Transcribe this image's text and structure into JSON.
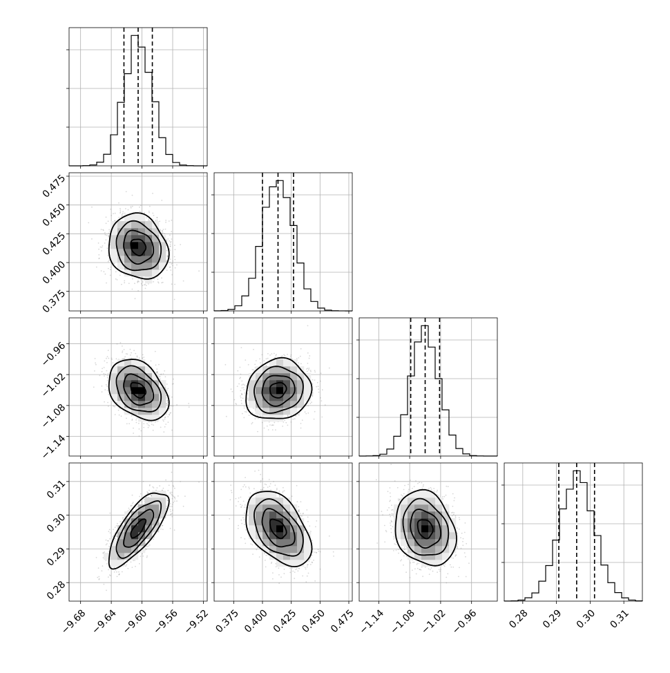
{
  "chart_data": {
    "type": "corner",
    "parameters": [
      {
        "mean": -9.605,
        "sigma": 0.0185,
        "lim": [
          -9.695,
          -9.515
        ],
        "ticks": [
          -9.68,
          -9.64,
          -9.6,
          -9.56,
          -9.52
        ],
        "tick_labels": [
          "−9.68",
          "−9.64",
          "−9.60",
          "−9.56",
          "−9.52"
        ],
        "quantiles": [
          -9.6235,
          -9.605,
          -9.5865
        ]
      },
      {
        "mean": 0.4135,
        "sigma": 0.0135,
        "lim": [
          0.358,
          0.478
        ],
        "ticks": [
          0.375,
          0.4,
          0.425,
          0.45,
          0.475
        ],
        "tick_labels": [
          "0.375",
          "0.400",
          "0.425",
          "0.450",
          "0.475"
        ],
        "quantiles": [
          0.4,
          0.4135,
          0.427
        ]
      },
      {
        "mean": -1.05,
        "sigma": 0.028,
        "lim": [
          -1.178,
          -0.91
        ],
        "ticks": [
          -1.14,
          -1.08,
          -1.02,
          -0.96
        ],
        "tick_labels": [
          "−1.14",
          "−1.08",
          "−1.02",
          "−0.96"
        ],
        "quantiles": [
          -1.078,
          -1.05,
          -1.022
        ]
      },
      {
        "mean": 0.296,
        "sigma": 0.0053,
        "lim": [
          0.2745,
          0.3155
        ],
        "ticks": [
          0.28,
          0.29,
          0.3,
          0.31
        ],
        "tick_labels": [
          "0.28",
          "0.29",
          "0.30",
          "0.31"
        ],
        "quantiles": [
          0.2907,
          0.296,
          0.3013
        ]
      }
    ],
    "correlations": [
      {
        "pair": [
          1,
          0
        ],
        "rho": -0.15
      },
      {
        "pair": [
          2,
          0
        ],
        "rho": -0.35
      },
      {
        "pair": [
          2,
          1
        ],
        "rho": 0.1
      },
      {
        "pair": [
          3,
          0
        ],
        "rho": 0.75
      },
      {
        "pair": [
          3,
          1
        ],
        "rho": -0.45
      },
      {
        "pair": [
          3,
          2
        ],
        "rho": -0.2
      }
    ],
    "contour_levels_sigma": [
      0.5,
      1.0,
      1.5,
      2.0
    ],
    "histogram_bins": 20,
    "grid": true,
    "colors": {
      "points": "#8c8c8c",
      "density": "#000000",
      "lines": "#000000"
    }
  }
}
